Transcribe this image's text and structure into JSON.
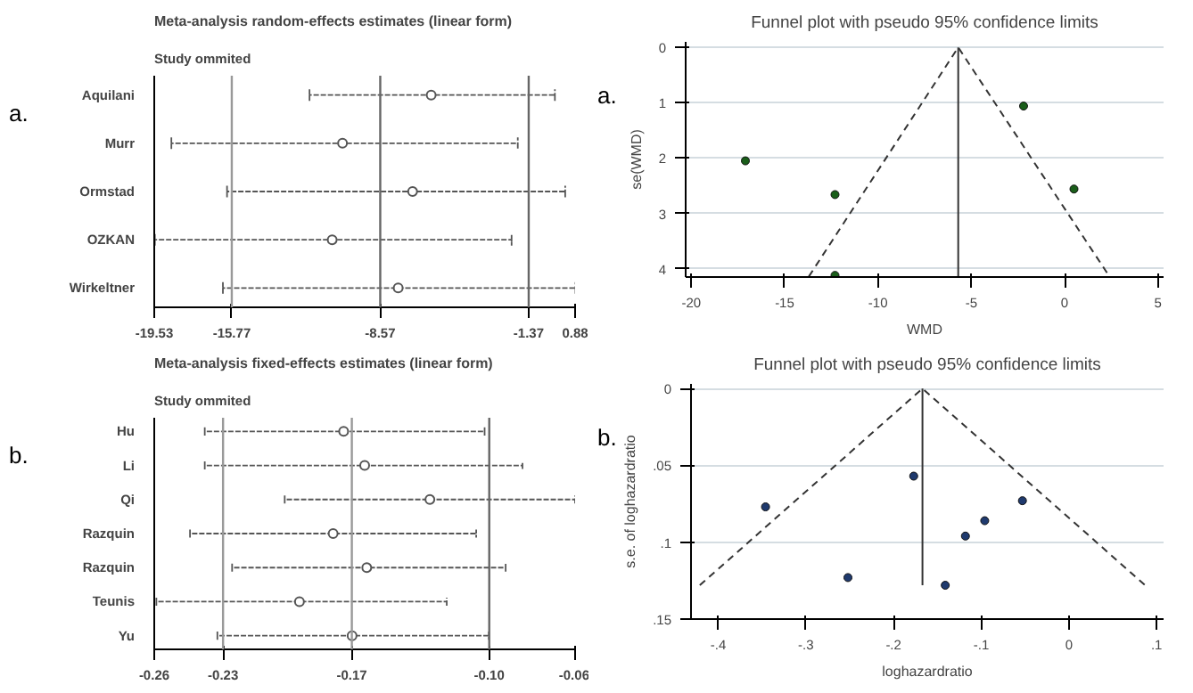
{
  "chart_data": [
    {
      "type": "scatter",
      "orientation": "horizontal",
      "title": "Meta-analysis random-effects estimates (linear form)",
      "subtitle": "Study ommited",
      "annotations": [
        "a."
      ],
      "categories": [
        "Aquilani",
        "Murr",
        "Ormstad",
        "OZKAN",
        "Wirkeltner"
      ],
      "series": [
        {
          "color": "#555555",
          "marker": "circle",
          "values": [
            -6.1,
            -10.4,
            -7.0,
            -10.9,
            -7.7
          ],
          "errors": [
            [
              -12.0,
              -0.1
            ],
            [
              -18.7,
              -1.9
            ],
            [
              -16.0,
              0.4
            ],
            [
              -19.5,
              -2.2
            ],
            [
              -16.2,
              0.9
            ]
          ]
        }
      ],
      "xlim": [
        -19.53,
        0.88
      ],
      "xticks": [
        -19.53,
        -15.77,
        -8.57,
        -1.37,
        0.88
      ],
      "ref_lines": [
        {
          "axis": "x",
          "value": -15.77,
          "color": "#999999"
        },
        {
          "axis": "x",
          "value": -8.57,
          "color": "#666666"
        },
        {
          "axis": "x",
          "value": -1.37,
          "color": "#666666"
        }
      ],
      "grid": false
    },
    {
      "type": "scatter",
      "title": "Funnel plot with pseudo 95% confidence limits",
      "annotations": [
        "a."
      ],
      "xlabel": "WMD",
      "ylabel": "se(WMD)",
      "series": [
        {
          "type": "scatter",
          "marker": "circle",
          "color": "#1a5e1a",
          "x": [
            -17.1,
            -12.3,
            -12.3,
            -2.2,
            0.5
          ],
          "values": [
            2.05,
            2.66,
            4.12,
            1.06,
            2.56
          ]
        },
        {
          "type": "line",
          "line_style": "dashed",
          "color": "#333333",
          "x": [
            -13.7,
            -5.7,
            2.4
          ],
          "values": [
            4.14,
            0,
            4.14
          ]
        },
        {
          "type": "line",
          "line_style": "solid",
          "color": "#333333",
          "x": [
            -5.7,
            -5.7
          ],
          "values": [
            0,
            4.14
          ]
        }
      ],
      "xlim": [
        -20.3,
        5.3
      ],
      "xticks": [
        -20,
        -15,
        -10,
        -5,
        0,
        5
      ],
      "ylim": [
        4.15,
        -0.1
      ],
      "yticks": [
        0,
        1,
        2,
        3,
        4
      ],
      "grid": "y"
    },
    {
      "type": "scatter",
      "orientation": "horizontal",
      "title": "Meta-analysis fixed-effects estimates (linear form)",
      "subtitle": "Study ommited",
      "annotations": [
        "b."
      ],
      "categories": [
        "Hu",
        "Li",
        "Qi",
        "Razquin",
        "Razquin",
        "Teunis",
        "Yu"
      ],
      "series": [
        {
          "color": "#555555",
          "marker": "circle",
          "values": [
            -0.17,
            -0.16,
            -0.129,
            -0.175,
            -0.159,
            -0.191,
            -0.166
          ],
          "errors": [
            [
              -0.236,
              -0.103
            ],
            [
              -0.236,
              -0.085
            ],
            [
              -0.198,
              -0.06
            ],
            [
              -0.243,
              -0.107
            ],
            [
              -0.223,
              -0.093
            ],
            [
              -0.259,
              -0.121
            ],
            [
              -0.23,
              -0.101
            ]
          ]
        }
      ],
      "xlim": [
        -0.26,
        -0.06
      ],
      "xticks": [
        -0.26,
        {
          "value": -0.2273,
          "label": "-0.23"
        },
        {
          "value": -0.1661,
          "label": "-0.17"
        },
        {
          "value": -0.1008,
          "label": "-0.10"
        },
        {
          "value": -0.06,
          "label": "-0.06"
        }
      ],
      "ref_lines": [
        {
          "axis": "x",
          "value": -0.2273,
          "color": "#999999"
        },
        {
          "axis": "x",
          "value": -0.1661,
          "color": "#999999"
        },
        {
          "axis": "x",
          "value": -0.1008,
          "color": "#666666"
        }
      ],
      "grid": false
    },
    {
      "type": "scatter",
      "title": "Funnel plot with pseudo 95% confidence limits",
      "annotations": [
        "b."
      ],
      "xlabel": "loghazardratio",
      "ylabel": "s.e. of loghazardratio",
      "series": [
        {
          "type": "scatter",
          "marker": "circle",
          "color": "#1f3a6e",
          "x": [
            -0.346,
            -0.177,
            -0.053,
            -0.096,
            -0.118,
            -0.252,
            -0.141
          ],
          "values": [
            0.077,
            0.057,
            0.073,
            0.086,
            0.096,
            0.123,
            0.128
          ]
        },
        {
          "type": "line",
          "line_style": "dashed",
          "color": "#333333",
          "x": [
            -0.421,
            -0.167,
            0.087
          ],
          "values": [
            0.128,
            0,
            0.128
          ]
        },
        {
          "type": "line",
          "line_style": "solid",
          "color": "#333333",
          "x": [
            -0.167,
            -0.167
          ],
          "values": [
            0,
            0.128
          ]
        }
      ],
      "xlim": [
        -0.431,
        0.108
      ],
      "xticks": [
        {
          "value": -0.4,
          "label": "-.4"
        },
        {
          "value": -0.3,
          "label": "-.3"
        },
        {
          "value": -0.2,
          "label": "-.2"
        },
        {
          "value": -0.1,
          "label": "-.1"
        },
        0,
        {
          "value": 0.1,
          "label": ".1"
        }
      ],
      "ylim": [
        0.15,
        -0.003
      ],
      "yticks": [
        0,
        {
          "value": 0.05,
          "label": ".05"
        },
        {
          "value": 0.1,
          "label": ".1"
        },
        {
          "value": 0.15,
          "label": ".15"
        }
      ],
      "grid": "y"
    }
  ]
}
